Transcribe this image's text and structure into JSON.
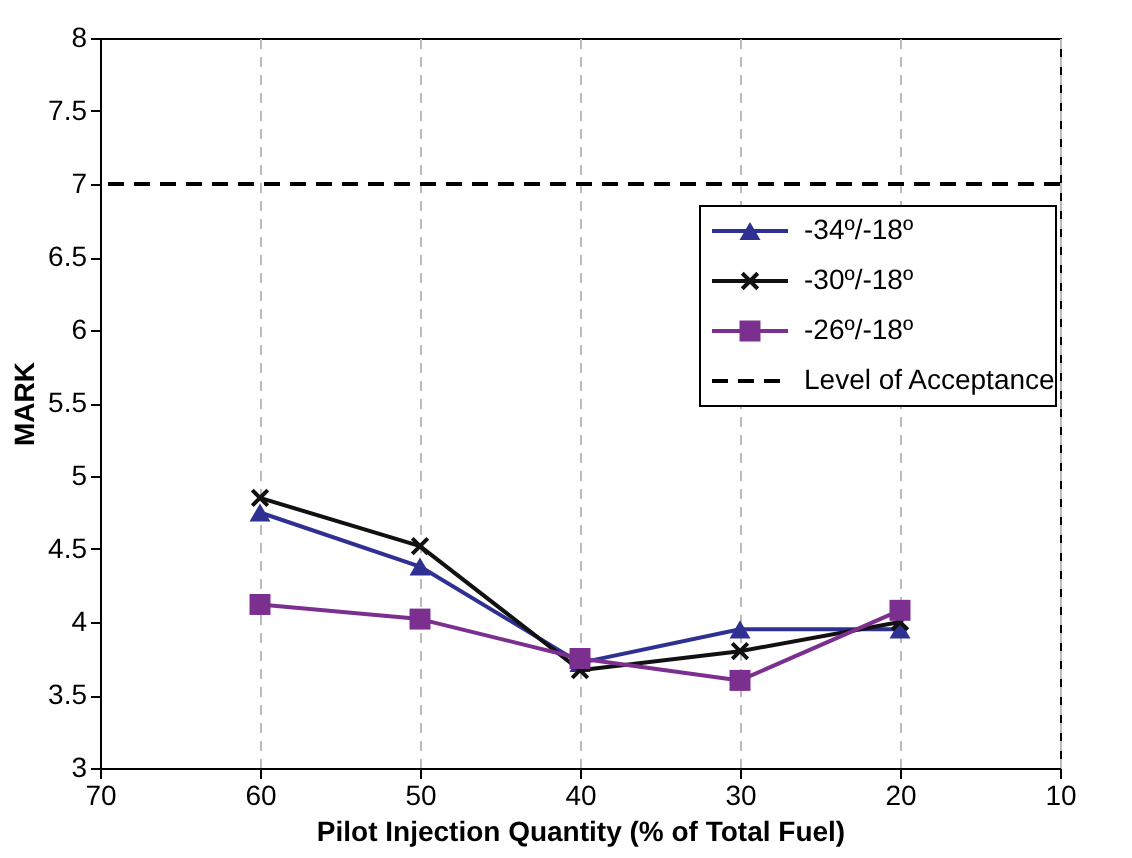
{
  "chart_data": {
    "type": "line",
    "xlabel": "Pilot Injection Quantity (% of Total Fuel)",
    "ylabel": "MARK",
    "x": [
      60,
      50,
      40,
      30,
      20
    ],
    "series": [
      {
        "name": "-34º/-18º",
        "color": "#2e3192",
        "marker": "triangle",
        "values": [
          4.75,
          4.38,
          3.72,
          3.95,
          3.95
        ]
      },
      {
        "name": "-30º/-18º",
        "color": "#111111",
        "marker": "cross",
        "values": [
          4.85,
          4.52,
          3.67,
          3.8,
          4.0
        ]
      },
      {
        "name": "-26º/-18º",
        "color": "#7b2f8e",
        "marker": "square",
        "values": [
          4.12,
          4.02,
          3.75,
          3.6,
          4.08
        ]
      }
    ],
    "ref_lines": [
      {
        "axis": "y",
        "value": 7,
        "label": "Level of Acceptance",
        "line_style": "dashed",
        "color": "#000000"
      }
    ],
    "xlim": [
      70,
      10
    ],
    "xticks": [
      70,
      60,
      50,
      40,
      30,
      20,
      10
    ],
    "ylim": [
      3,
      8
    ],
    "yticks": [
      3,
      3.5,
      4,
      4.5,
      5,
      5.5,
      6,
      6.5,
      7,
      7.5,
      8
    ],
    "grid": "x",
    "legend": "top right",
    "line_style": "solid"
  }
}
